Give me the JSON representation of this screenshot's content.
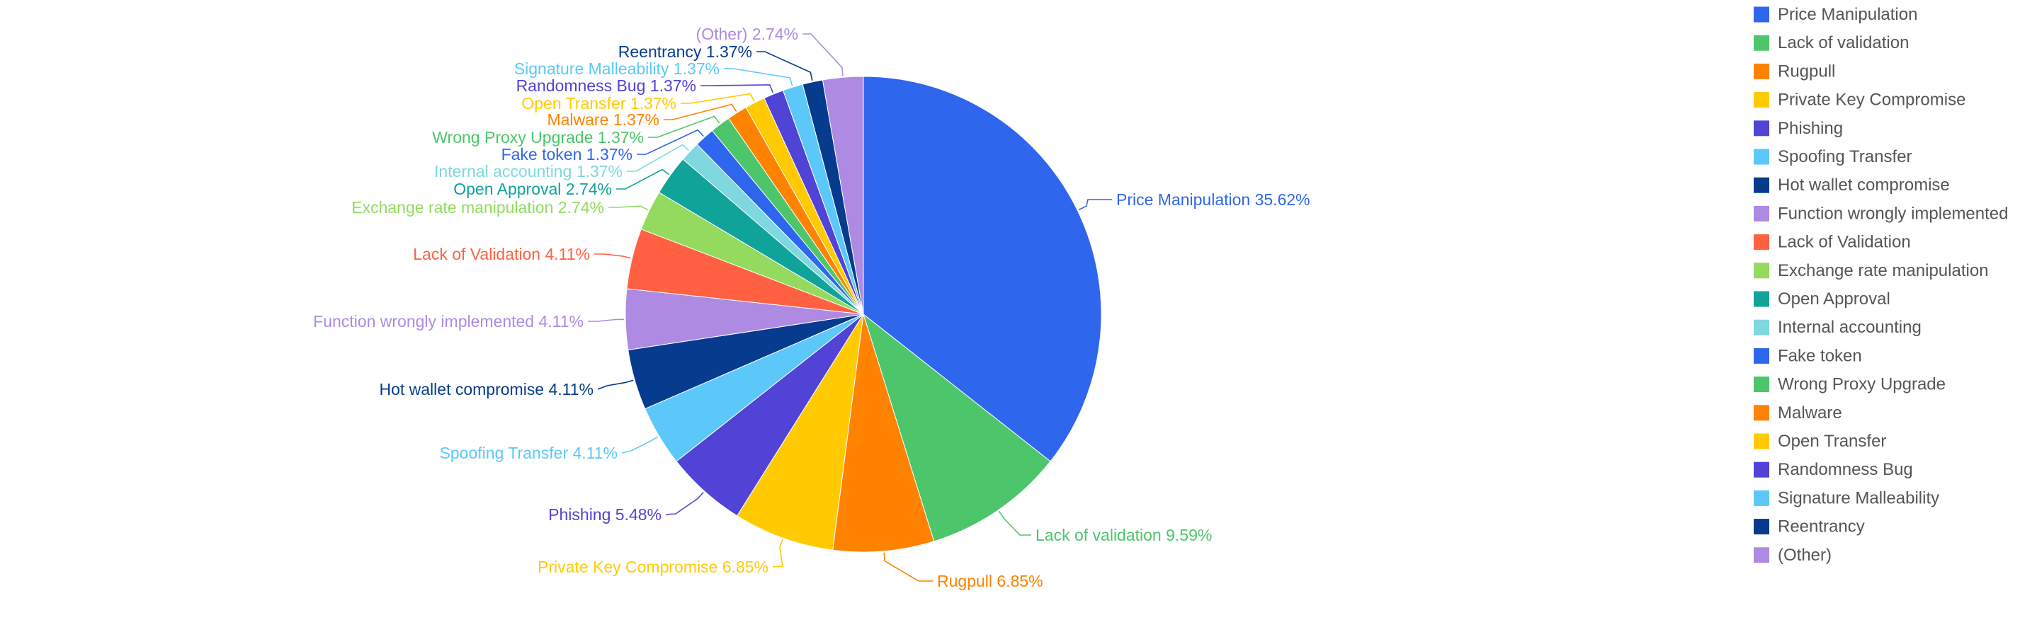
{
  "chart_data": {
    "type": "pie",
    "title": "",
    "legend_position": "right",
    "slices": [
      {
        "label": "Price Manipulation",
        "value": 35.62,
        "display": "Price Manipulation 35.62%",
        "color": "#2F66EE"
      },
      {
        "label": "Lack of validation",
        "value": 9.59,
        "display": "Lack of validation 9.59%",
        "color": "#4DC56A"
      },
      {
        "label": "Rugpull",
        "value": 6.85,
        "display": "Rugpull 6.85%",
        "color": "#FF8200"
      },
      {
        "label": "Private Key Compromise",
        "value": 6.85,
        "display": "Private Key Compromise 6.85%",
        "color": "#FFCA00"
      },
      {
        "label": "Phishing",
        "value": 5.48,
        "display": "Phishing 5.48%",
        "color": "#5143D6"
      },
      {
        "label": "Spoofing Transfer",
        "value": 4.11,
        "display": "Spoofing Transfer 4.11%",
        "color": "#5BC8F9"
      },
      {
        "label": "Hot wallet compromise",
        "value": 4.11,
        "display": "Hot wallet compromise 4.11%",
        "color": "#063B8E"
      },
      {
        "label": "Function wrongly implemented",
        "value": 4.11,
        "display": "Function wrongly implemented 4.11%",
        "color": "#AE8AE2"
      },
      {
        "label": "Lack of Validation",
        "value": 4.11,
        "display": "Lack of Validation 4.11%",
        "color": "#FF6142"
      },
      {
        "label": "Exchange rate manipulation",
        "value": 2.74,
        "display": "Exchange rate manipulation 2.74%",
        "color": "#93DA5E"
      },
      {
        "label": "Open Approval",
        "value": 2.74,
        "display": "Open Approval 2.74%",
        "color": "#10A39A"
      },
      {
        "label": "Internal accounting",
        "value": 1.37,
        "display": "Internal accounting 1.37%",
        "color": "#7FD7DF"
      },
      {
        "label": "Fake token",
        "value": 1.37,
        "display": "Fake token 1.37%",
        "color": "#2F66EE"
      },
      {
        "label": "Wrong Proxy Upgrade",
        "value": 1.37,
        "display": "Wrong Proxy Upgrade 1.37%",
        "color": "#4DC56A"
      },
      {
        "label": "Malware",
        "value": 1.37,
        "display": "Malware 1.37%",
        "color": "#FF8200"
      },
      {
        "label": "Open Transfer",
        "value": 1.37,
        "display": "Open Transfer 1.37%",
        "color": "#FFCA00"
      },
      {
        "label": "Randomness Bug",
        "value": 1.37,
        "display": "Randomness Bug 1.37%",
        "color": "#5143D6"
      },
      {
        "label": "Signature Malleability",
        "value": 1.37,
        "display": "Signature Malleability 1.37%",
        "color": "#5BC8F9"
      },
      {
        "label": "Reentrancy",
        "value": 1.37,
        "display": "Reentrancy 1.37%",
        "color": "#063B8E"
      },
      {
        "label": "(Other)",
        "value": 2.74,
        "display": "(Other) 2.74%",
        "color": "#AE8AE2"
      }
    ]
  }
}
